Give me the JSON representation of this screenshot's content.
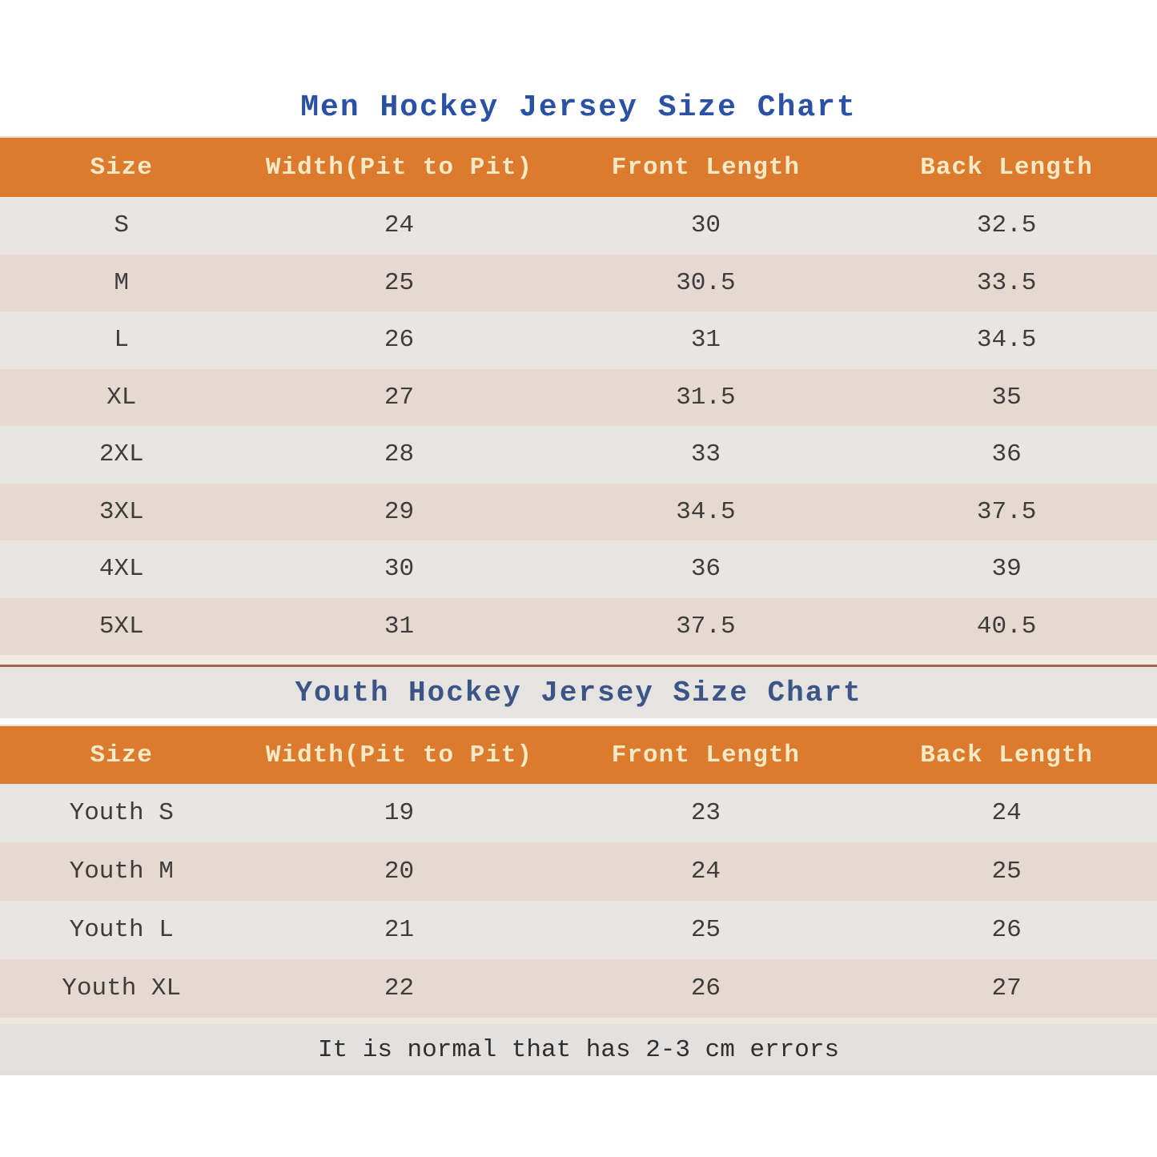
{
  "chart_data": [
    {
      "type": "table",
      "title": "Men Hockey Jersey Size Chart",
      "columns": [
        "Size",
        "Width(Pit to Pit)",
        "Front Length",
        "Back Length"
      ],
      "rows": [
        [
          "S",
          "24",
          "30",
          "32.5"
        ],
        [
          "M",
          "25",
          "30.5",
          "33.5"
        ],
        [
          "L",
          "26",
          "31",
          "34.5"
        ],
        [
          "XL",
          "27",
          "31.5",
          "35"
        ],
        [
          "2XL",
          "28",
          "33",
          "36"
        ],
        [
          "3XL",
          "29",
          "34.5",
          "37.5"
        ],
        [
          "4XL",
          "30",
          "36",
          "39"
        ],
        [
          "5XL",
          "31",
          "37.5",
          "40.5"
        ]
      ]
    },
    {
      "type": "table",
      "title": "Youth Hockey Jersey Size Chart",
      "columns": [
        "Size",
        "Width(Pit to Pit)",
        "Front Length",
        "Back Length"
      ],
      "rows": [
        [
          "Youth S",
          "19",
          "23",
          "24"
        ],
        [
          "Youth M",
          "20",
          "24",
          "25"
        ],
        [
          "Youth L",
          "21",
          "25",
          "26"
        ],
        [
          "Youth XL",
          "22",
          "26",
          "27"
        ]
      ]
    }
  ],
  "note": "It is normal that has 2-3 cm errors",
  "colors": {
    "header_background": "#dc7b2d",
    "header_text": "#f6e9c6",
    "row_gray": "#e7e6e4",
    "row_peach": "#e5d9d2",
    "men_title_text": "#2b51a5",
    "youth_title_text": "#3d5586",
    "divider_line": "#a86252",
    "band_gray": "#e6e4e1",
    "data_text": "#3e3d3b"
  }
}
